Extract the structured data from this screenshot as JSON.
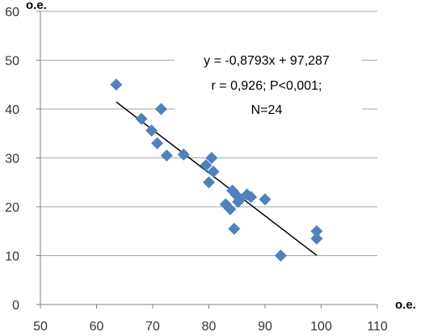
{
  "chart_data": {
    "type": "scatter",
    "title": "",
    "xlabel": "о.е.",
    "ylabel": "о.е.",
    "xlim": [
      50,
      110
    ],
    "ylim": [
      0,
      60
    ],
    "x_ticks": [
      "50",
      "60",
      "70",
      "80",
      "90",
      "100",
      "110"
    ],
    "y_ticks": [
      "0",
      "10",
      "20",
      "30",
      "40",
      "50",
      "60"
    ],
    "grid": "horizontal",
    "marker_color": "#4F81BD",
    "trendline_color": "#000000",
    "trendline": {
      "slope": -0.8793,
      "intercept": 97.287,
      "x_range": [
        63.5,
        99.2
      ]
    },
    "annotations": [
      "y = -0,8793x + 97,287",
      "r = 0,926; P<0,001;",
      "N=24"
    ],
    "points": [
      {
        "x": 63.5,
        "y": 45.0
      },
      {
        "x": 68.0,
        "y": 38.0
      },
      {
        "x": 69.8,
        "y": 35.6
      },
      {
        "x": 70.8,
        "y": 33.0
      },
      {
        "x": 71.5,
        "y": 40.0
      },
      {
        "x": 72.5,
        "y": 30.5
      },
      {
        "x": 75.5,
        "y": 30.7
      },
      {
        "x": 79.5,
        "y": 28.5
      },
      {
        "x": 80.0,
        "y": 25.0
      },
      {
        "x": 80.5,
        "y": 30.0
      },
      {
        "x": 80.8,
        "y": 27.2
      },
      {
        "x": 83.0,
        "y": 20.5
      },
      {
        "x": 83.8,
        "y": 19.5
      },
      {
        "x": 84.2,
        "y": 23.3
      },
      {
        "x": 84.5,
        "y": 15.5
      },
      {
        "x": 84.8,
        "y": 22.5
      },
      {
        "x": 85.2,
        "y": 21.0
      },
      {
        "x": 86.8,
        "y": 22.5
      },
      {
        "x": 87.5,
        "y": 22.0
      },
      {
        "x": 90.0,
        "y": 21.5
      },
      {
        "x": 92.8,
        "y": 10.0
      },
      {
        "x": 99.2,
        "y": 15.0
      },
      {
        "x": 99.2,
        "y": 13.5
      },
      {
        "x": 85.5,
        "y": 21.5
      }
    ]
  }
}
